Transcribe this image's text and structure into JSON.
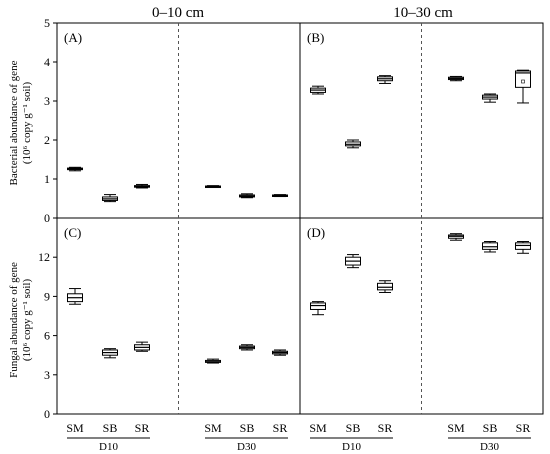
{
  "chart_data": {
    "type": "box",
    "column_headers": [
      "0–10 cm",
      "10–30 cm"
    ],
    "group_labels": [
      "D10",
      "D30"
    ],
    "categories": [
      "SM",
      "SB",
      "SR"
    ],
    "rows": [
      {
        "ylabel_line1": "Bacterial abundance of gene",
        "ylabel_line2": "(10⁶ copy g⁻¹ soil)",
        "ylim": [
          0,
          5
        ],
        "yticks": [
          "0",
          "1",
          "2",
          "3",
          "4",
          "5"
        ],
        "yvalues": [
          0,
          1,
          2,
          3,
          4,
          5
        ]
      },
      {
        "ylabel_line1": "Fungal abundance of gene",
        "ylabel_line2": "(10⁶ copy g⁻¹ soil)",
        "ylim": [
          0,
          15
        ],
        "yticks": [
          "0",
          "3",
          "6",
          "9",
          "12"
        ],
        "yvalues": [
          0,
          3,
          6,
          9,
          12
        ]
      }
    ],
    "panels": [
      {
        "label": "(A)",
        "row": 0,
        "col": 0,
        "boxes": [
          {
            "group": "D10",
            "category": "SM",
            "min": 1.21,
            "q1": 1.24,
            "median": 1.26,
            "q3": 1.28,
            "max": 1.3
          },
          {
            "group": "D10",
            "category": "SB",
            "min": 0.42,
            "q1": 0.45,
            "median": 0.49,
            "q3": 0.54,
            "max": 0.6
          },
          {
            "group": "D10",
            "category": "SR",
            "min": 0.77,
            "q1": 0.79,
            "median": 0.81,
            "q3": 0.83,
            "max": 0.86
          },
          {
            "group": "D30",
            "category": "SM",
            "min": 0.79,
            "q1": 0.8,
            "median": 0.81,
            "q3": 0.82,
            "max": 0.83
          },
          {
            "group": "D30",
            "category": "SB",
            "min": 0.52,
            "q1": 0.54,
            "median": 0.56,
            "q3": 0.59,
            "max": 0.62
          },
          {
            "group": "D30",
            "category": "SR",
            "min": 0.55,
            "q1": 0.56,
            "median": 0.57,
            "q3": 0.59,
            "max": 0.6
          }
        ]
      },
      {
        "label": "(B)",
        "row": 0,
        "col": 1,
        "boxes": [
          {
            "group": "D10",
            "category": "SM",
            "min": 3.18,
            "q1": 3.22,
            "median": 3.28,
            "q3": 3.33,
            "max": 3.38
          },
          {
            "group": "D10",
            "category": "SB",
            "min": 1.8,
            "q1": 1.85,
            "median": 1.89,
            "q3": 1.95,
            "max": 2.0
          },
          {
            "group": "D10",
            "category": "SR",
            "min": 3.45,
            "q1": 3.52,
            "median": 3.57,
            "q3": 3.62,
            "max": 3.65
          },
          {
            "group": "D30",
            "category": "SM",
            "min": 3.52,
            "q1": 3.55,
            "median": 3.58,
            "q3": 3.61,
            "max": 3.63
          },
          {
            "group": "D30",
            "category": "SB",
            "min": 2.97,
            "q1": 3.05,
            "median": 3.1,
            "q3": 3.15,
            "max": 3.18
          },
          {
            "group": "D30",
            "category": "SR",
            "min": 2.95,
            "q1": 3.35,
            "median": 3.72,
            "q3": 3.77,
            "max": 3.79,
            "mean": 3.5
          }
        ]
      },
      {
        "label": "(C)",
        "row": 1,
        "col": 0,
        "boxes": [
          {
            "group": "D10",
            "category": "SM",
            "min": 8.4,
            "q1": 8.6,
            "median": 8.9,
            "q3": 9.2,
            "max": 9.6
          },
          {
            "group": "D10",
            "category": "SB",
            "min": 4.3,
            "q1": 4.5,
            "median": 4.7,
            "q3": 4.9,
            "max": 5.0
          },
          {
            "group": "D10",
            "category": "SR",
            "min": 4.8,
            "q1": 4.9,
            "median": 5.1,
            "q3": 5.3,
            "max": 5.5
          },
          {
            "group": "D30",
            "category": "SM",
            "min": 3.9,
            "q1": 3.95,
            "median": 4.0,
            "q3": 4.1,
            "max": 4.2
          },
          {
            "group": "D30",
            "category": "SB",
            "min": 4.9,
            "q1": 5.0,
            "median": 5.1,
            "q3": 5.2,
            "max": 5.3
          },
          {
            "group": "D30",
            "category": "SR",
            "min": 4.5,
            "q1": 4.6,
            "median": 4.7,
            "q3": 4.8,
            "max": 4.9
          }
        ]
      },
      {
        "label": "(D)",
        "row": 1,
        "col": 1,
        "boxes": [
          {
            "group": "D10",
            "category": "SM",
            "min": 7.6,
            "q1": 8.0,
            "median": 8.3,
            "q3": 8.5,
            "max": 8.6
          },
          {
            "group": "D10",
            "category": "SB",
            "min": 11.2,
            "q1": 11.4,
            "median": 11.7,
            "q3": 12.0,
            "max": 12.2
          },
          {
            "group": "D10",
            "category": "SR",
            "min": 9.3,
            "q1": 9.5,
            "median": 9.7,
            "q3": 10.0,
            "max": 10.2
          },
          {
            "group": "D30",
            "category": "SM",
            "min": 13.3,
            "q1": 13.45,
            "median": 13.6,
            "q3": 13.7,
            "max": 13.8
          },
          {
            "group": "D30",
            "category": "SB",
            "min": 12.4,
            "q1": 12.6,
            "median": 12.8,
            "q3": 13.1,
            "max": 13.2
          },
          {
            "group": "D30",
            "category": "SR",
            "min": 12.3,
            "q1": 12.6,
            "median": 12.9,
            "q3": 13.1,
            "max": 13.2
          }
        ]
      }
    ]
  }
}
